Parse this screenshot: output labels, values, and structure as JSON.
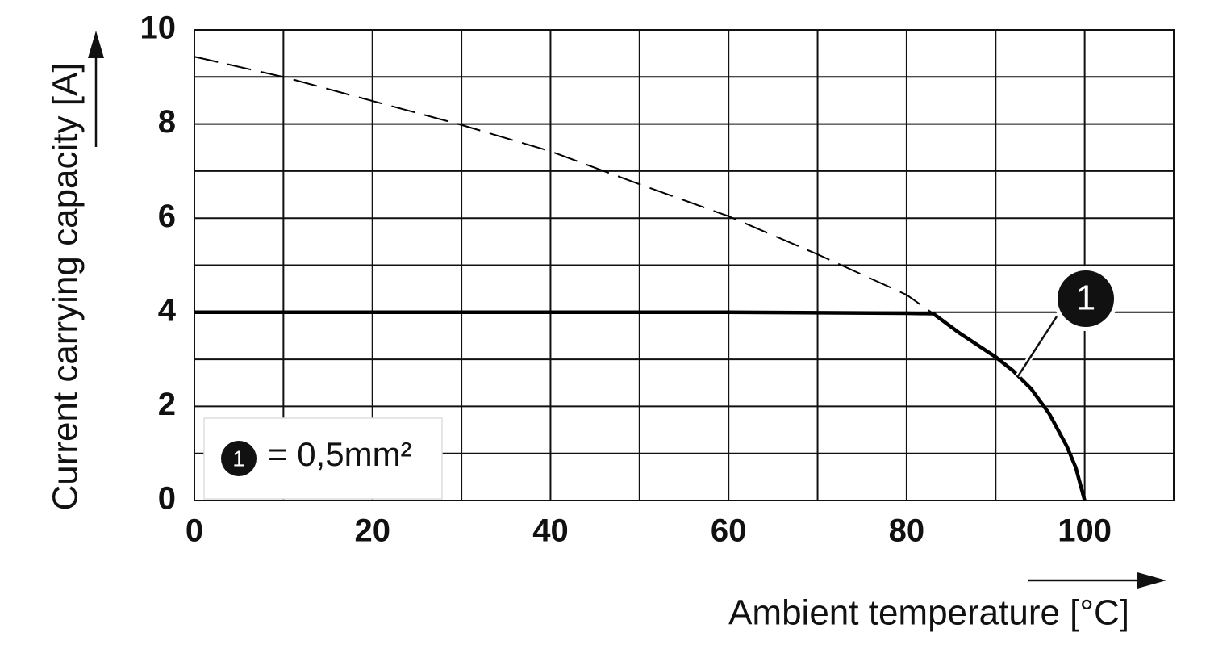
{
  "chart_data": {
    "type": "line",
    "xlabel": "Ambient temperature [°C]",
    "ylabel": "Current carrying capacity [A]",
    "xlim": [
      0,
      110
    ],
    "ylim": [
      0,
      10
    ],
    "xticks": [
      0,
      20,
      40,
      60,
      80,
      100
    ],
    "yticks": [
      0,
      2,
      4,
      6,
      8,
      10
    ],
    "x_minor_ticks": [
      10,
      30,
      50,
      70,
      90,
      110
    ],
    "y_minor_ticks": [
      1,
      3,
      5,
      7,
      9
    ],
    "grid": true,
    "series": [
      {
        "color": "#000000",
        "style": "solid",
        "x": [
          0,
          20,
          40,
          60,
          80,
          83,
          86,
          88,
          90,
          92,
          94,
          96,
          98,
          99,
          100
        ],
        "values": [
          4,
          4,
          4,
          4,
          3.98,
          3.97,
          3.55,
          3.3,
          3.05,
          2.75,
          2.37,
          1.85,
          1.15,
          0.7,
          0
        ],
        "callout": "1"
      },
      {
        "color": "#000000",
        "style": "dashed",
        "x": [
          0,
          10,
          20,
          30,
          40,
          50,
          60,
          70,
          80,
          83
        ],
        "values": [
          9.43,
          9.0,
          8.49,
          7.98,
          7.42,
          6.72,
          6.04,
          5.23,
          4.37,
          3.97
        ]
      }
    ],
    "legend": {
      "marker": "1",
      "label": "= 0,5mm²"
    }
  }
}
